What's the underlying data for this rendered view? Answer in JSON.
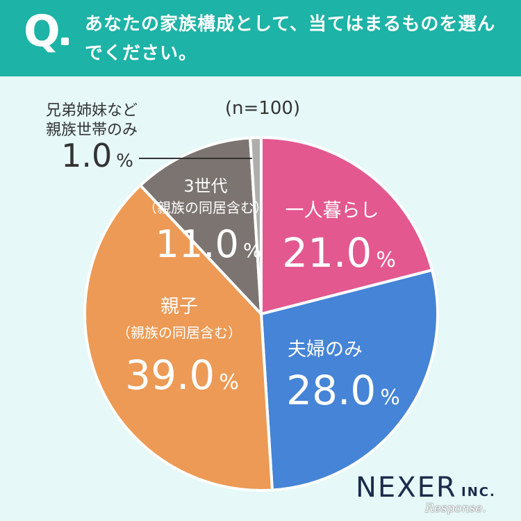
{
  "header": {
    "q_letter": "Q",
    "question": "あなたの家族構成として、当てはまるものを選んでください。"
  },
  "chart_data": {
    "type": "pie",
    "sample_size": "(n=100)",
    "unit": "%",
    "slices": [
      {
        "label": "一人暮らし",
        "sublabel": "",
        "value": 21.0,
        "value_text": "21.0",
        "color": "#e3588f"
      },
      {
        "label": "夫婦のみ",
        "sublabel": "",
        "value": 28.0,
        "value_text": "28.0",
        "color": "#4584d6"
      },
      {
        "label": "親子",
        "sublabel": "（親族の同居含む）",
        "value": 39.0,
        "value_text": "39.0",
        "color": "#ec9a55"
      },
      {
        "label": "3世代",
        "sublabel": "（親族の同居含む）",
        "value": 11.0,
        "value_text": "11.0",
        "color": "#7b7471"
      },
      {
        "label": "兄弟姉妹など",
        "sublabel": "親族世帯のみ",
        "value": 1.0,
        "value_text": "1.0",
        "color": "#b0aeac"
      }
    ]
  },
  "brand": {
    "name": "NEXER",
    "suffix": "INC."
  },
  "watermark": "Response."
}
